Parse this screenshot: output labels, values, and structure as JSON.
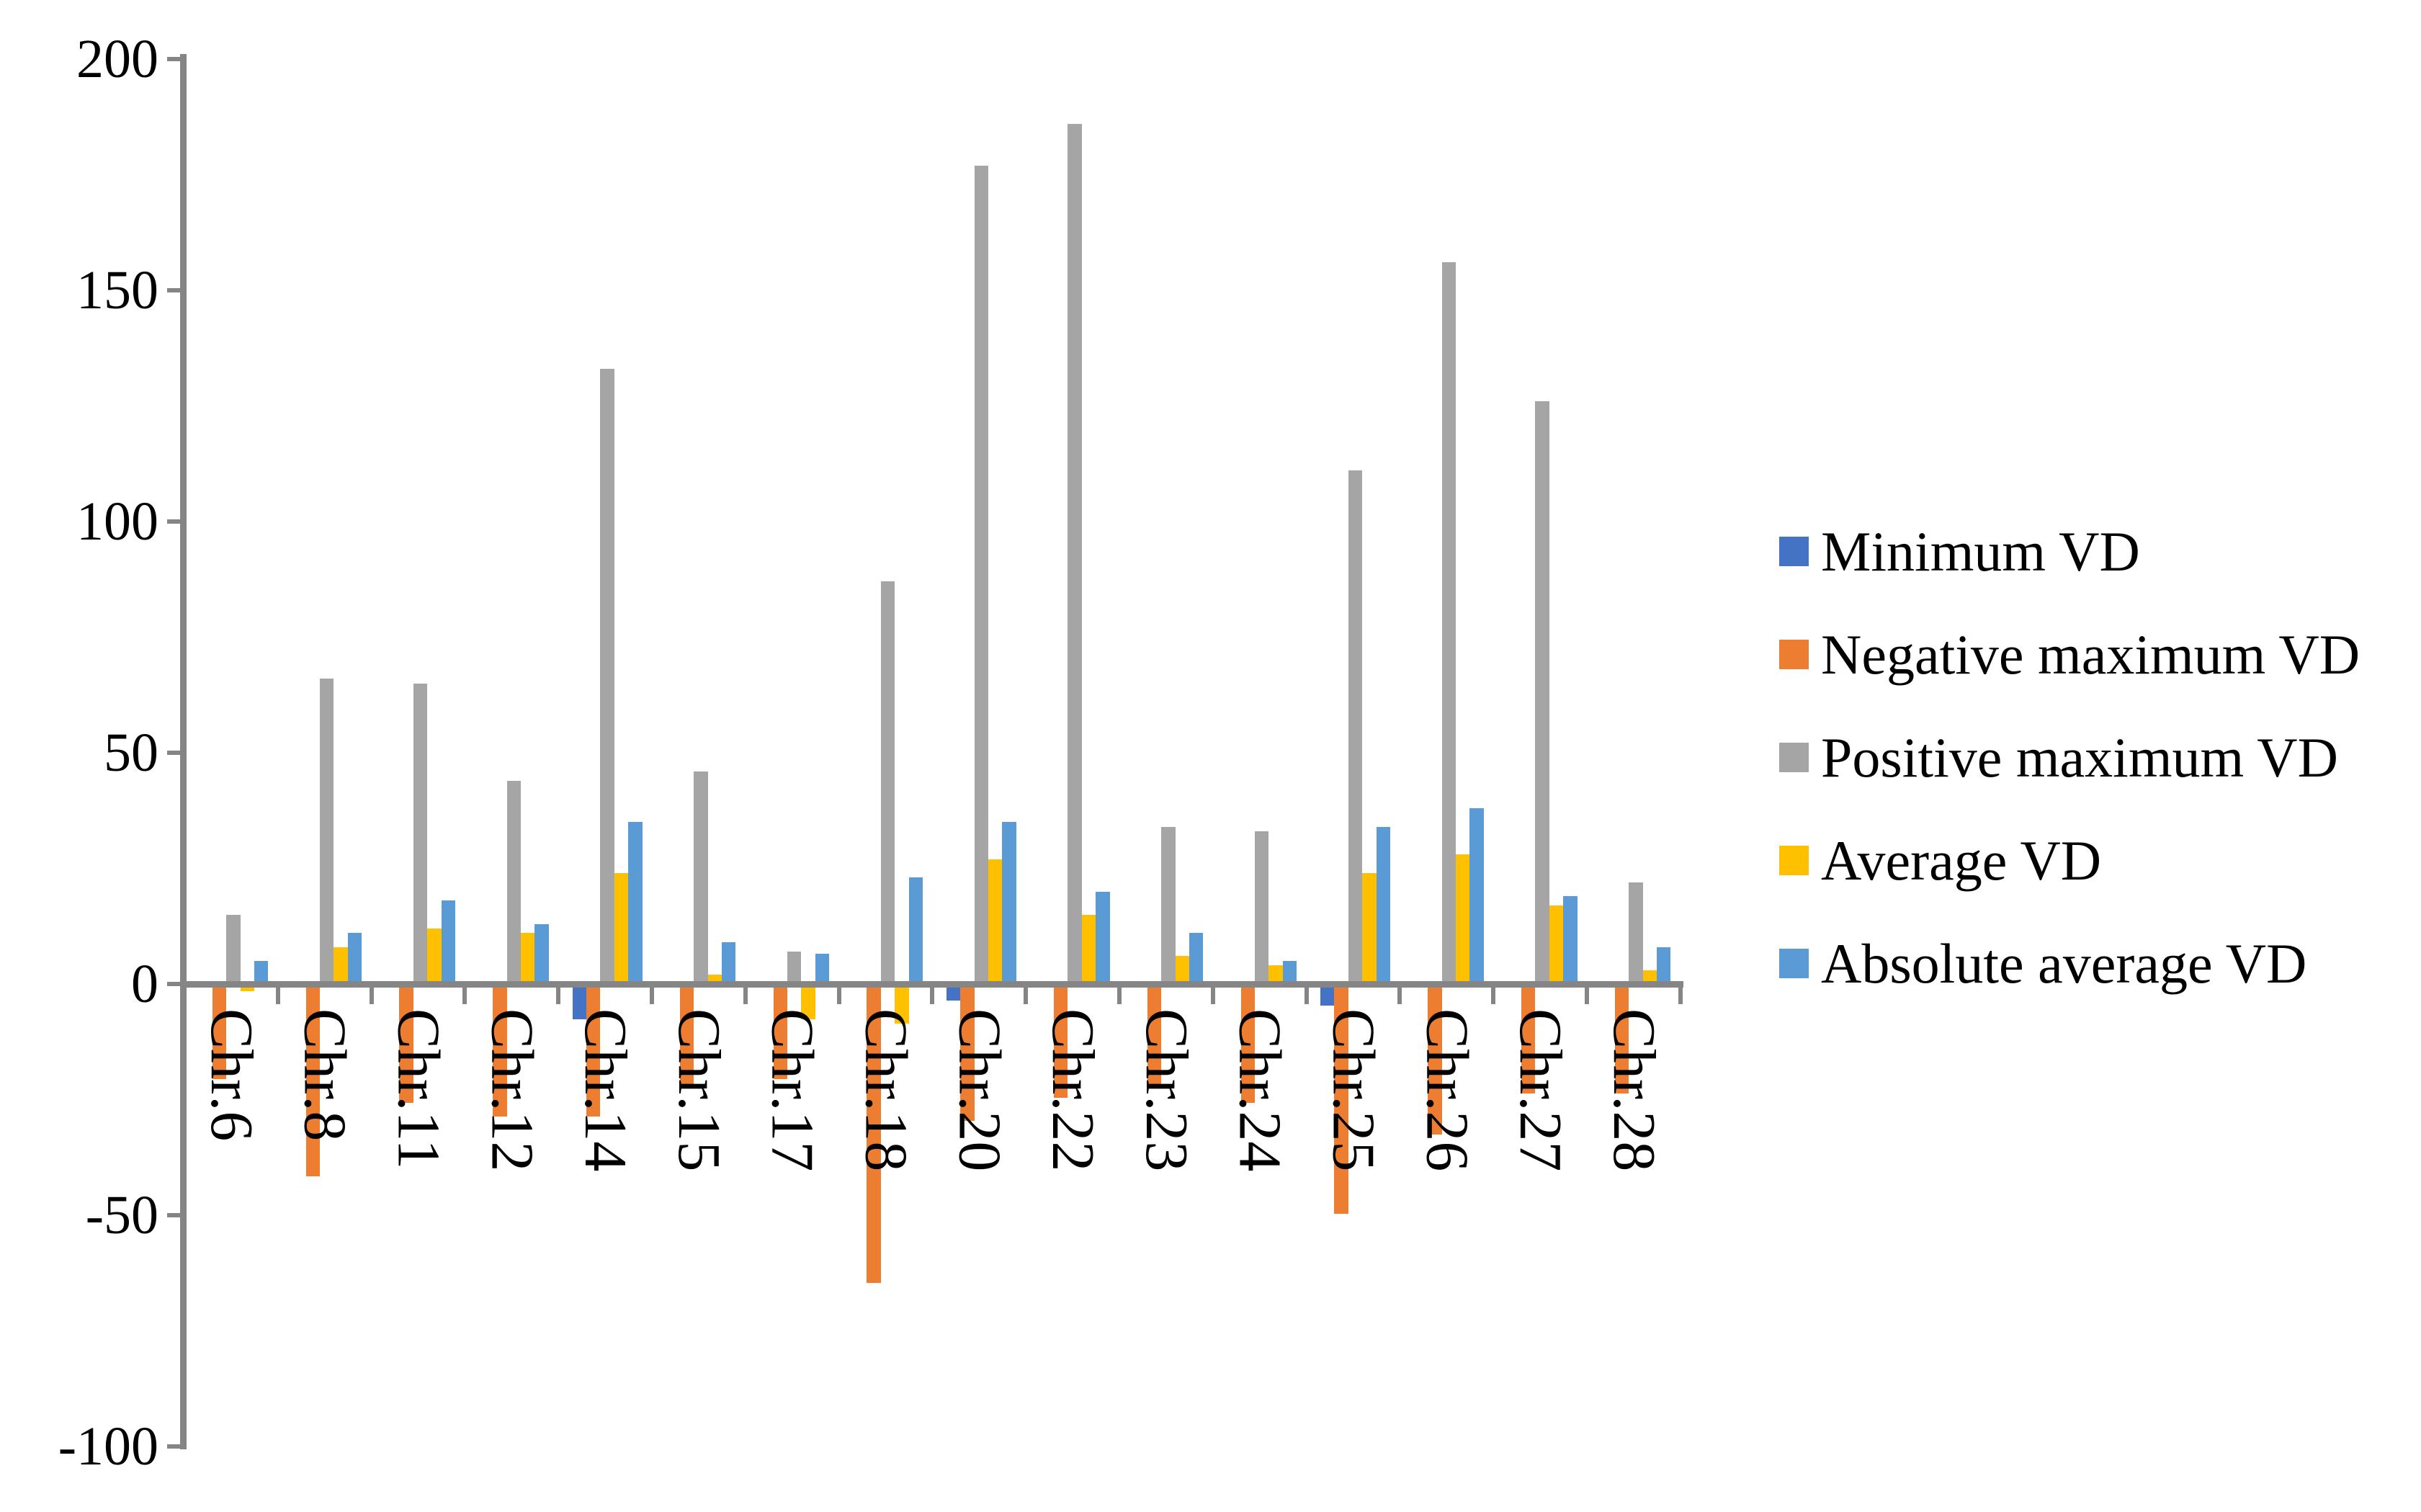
{
  "chart_data": {
    "type": "bar",
    "title": "",
    "xlabel": "",
    "ylabel": "",
    "categories": [
      "Chr.6",
      "Chr.8",
      "Chr.11",
      "Chr.12",
      "Chr.14",
      "Chr.15",
      "Chr.17",
      "Chr.18",
      "Chr.20",
      "Chr.22",
      "Chr.23",
      "Chr.24",
      "Chr.25",
      "Chr.26",
      "Chr.27",
      "Chr.28"
    ],
    "series": [
      {
        "name": "Minimum VD",
        "color": "#4472C4",
        "values": [
          0,
          0,
          0,
          0,
          -7,
          0,
          0,
          0,
          -3,
          0,
          0,
          0,
          -4,
          0,
          0,
          0
        ]
      },
      {
        "name": "Negative maximum VD",
        "color": "#ED7D31",
        "values": [
          -20,
          -41,
          -25,
          -28,
          -28,
          -22,
          -20,
          -64,
          -29,
          -24,
          -21,
          -25,
          -49,
          -32,
          -23,
          -23
        ]
      },
      {
        "name": "Positive maximum VD",
        "color": "#A5A5A5",
        "values": [
          15,
          66,
          65,
          44,
          133,
          46,
          7,
          87,
          177,
          186,
          34,
          33,
          111,
          156,
          126,
          22
        ]
      },
      {
        "name": "Average VD",
        "color": "#FFC000",
        "values": [
          -1,
          8,
          12,
          11,
          24,
          2,
          -7,
          -8,
          27,
          15,
          6,
          4,
          24,
          28,
          17,
          3
        ]
      },
      {
        "name": "Absolute average VD",
        "color": "#5B9BD5",
        "values": [
          5,
          11,
          18,
          13,
          35,
          9,
          6.5,
          23,
          35,
          20,
          11,
          5,
          34,
          38,
          19,
          8
        ]
      }
    ],
    "ylim": [
      -100,
      200
    ],
    "yticks": [
      200,
      150,
      100,
      50,
      0,
      -50,
      -100
    ],
    "grid": false,
    "legend_position": "right"
  },
  "axis": {
    "color": "#858585",
    "text_color": "#000000"
  }
}
